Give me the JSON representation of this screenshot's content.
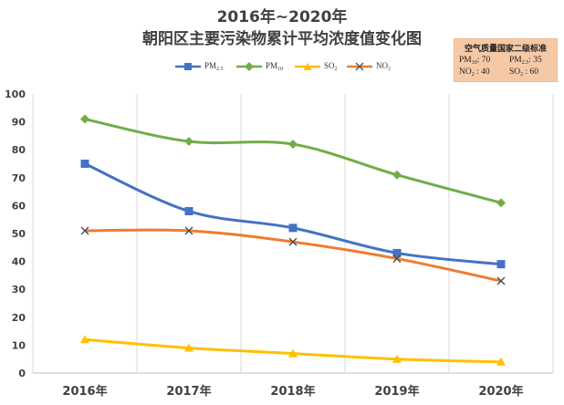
{
  "chart_data": {
    "type": "line",
    "title": "2016年~2020年",
    "subtitle": "朝阳区主要污染物累计平均浓度值变化图",
    "categories": [
      "2016年",
      "2017年",
      "2018年",
      "2019年",
      "2020年"
    ],
    "ylim": [
      0,
      100
    ],
    "yticks": [
      0,
      10,
      20,
      30,
      40,
      50,
      60,
      70,
      80,
      90,
      100
    ],
    "grid": "vertical",
    "legend_position": "top",
    "series": [
      {
        "name": "PM2.5",
        "color": "#4472c4",
        "marker": "square",
        "values": [
          75,
          58,
          52,
          43,
          39
        ]
      },
      {
        "name": "PM10",
        "color": "#70ad47",
        "marker": "diamond",
        "values": [
          91,
          83,
          82,
          71,
          61
        ]
      },
      {
        "name": "SO2",
        "color": "#ffc000",
        "marker": "triangle",
        "values": [
          12,
          9,
          7,
          5,
          4
        ]
      },
      {
        "name": "NO2",
        "color": "#ed7d31",
        "marker": "x",
        "values": [
          51,
          51,
          47,
          41,
          33
        ]
      }
    ],
    "annotation": {
      "title": "空气质量国家二级标准",
      "items": [
        {
          "label": "PM10",
          "value": "70"
        },
        {
          "label": "PM2.5",
          "value": "35"
        },
        {
          "label": "NO2",
          "value": "40"
        },
        {
          "label": "SO2",
          "value": "60"
        }
      ]
    }
  },
  "legend": {
    "pm25": {
      "base": "PM",
      "sub": "2.5"
    },
    "pm10": {
      "base": "PM",
      "sub": "10"
    },
    "so2": {
      "base": "SO",
      "sub": "2"
    },
    "no2": {
      "base": "NO",
      "sub": "2"
    }
  },
  "std": {
    "title": "空气质量国家二级标准",
    "pm10_base": "PM",
    "pm10_sub": "10",
    "pm10_val": ": 70",
    "pm25_base": "PM",
    "pm25_sub": "2.5",
    "pm25_val": ": 35",
    "no2_base": "NO",
    "no2_sub": "2",
    "no2_val": " : 40",
    "so2_base": "SO",
    "so2_sub": "2",
    "so2_val": " : 60"
  }
}
